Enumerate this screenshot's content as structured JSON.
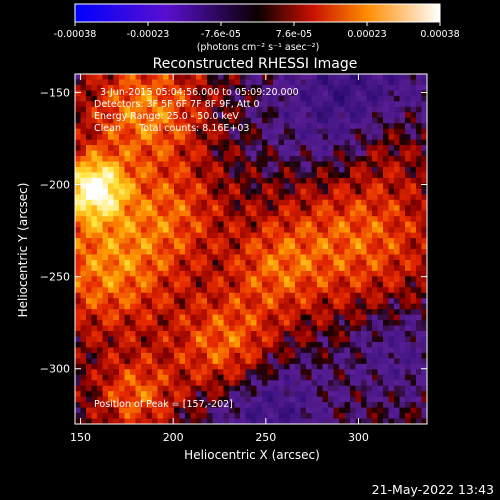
{
  "chart_data": {
    "type": "heatmap",
    "title": "Reconstructed RHESSI Image",
    "xlabel": "Heliocentric X (arcsec)",
    "ylabel": "Heliocentric Y (arcsec)",
    "xlim": [
      147,
      337
    ],
    "ylim": [
      -330,
      -140
    ],
    "x_ticks": [
      150,
      200,
      250,
      300
    ],
    "y_ticks": [
      -150,
      -200,
      -250,
      -300
    ],
    "colorbar": {
      "range": [
        -0.00038,
        0.00038
      ],
      "tick_labels": [
        "-0.00038",
        "-0.00023",
        "-7.6e-05",
        "7.6e-05",
        "0.00023",
        "0.00038"
      ],
      "unit_label": "(photons cm⁻² s⁻¹ asec⁻²)"
    },
    "annotations": [
      "3-Jun-2015 05:04:56.000 to 05:09:20.000",
      "Detectors: 3F 5F 6F 7F 8F 9F, Att 0",
      "Energy Range: 25.0 - 50.0 keV",
      "Clean      Total counts: 8.16E+03"
    ],
    "peak_label": "Position of Peak = [157,-202]",
    "peak": [
      157,
      -202
    ],
    "timestamp": "21-May-2022 13:43",
    "grid": false,
    "colors": {
      "background": "#000000",
      "text": "#ffffff"
    }
  }
}
